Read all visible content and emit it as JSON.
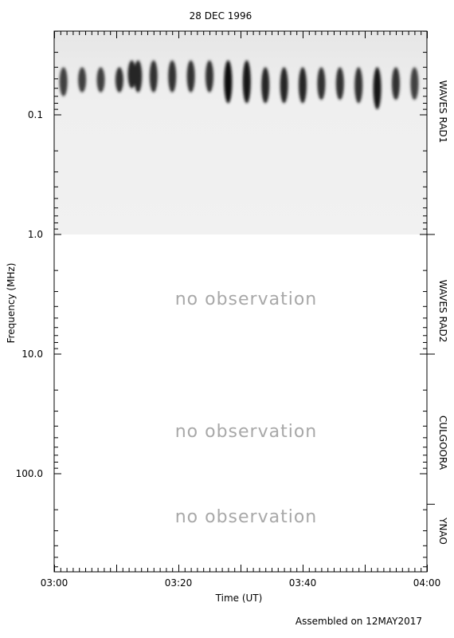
{
  "chart_data": {
    "type": "heatmap",
    "title": "28 DEC 1996",
    "xlabel": "Time (UT)",
    "ylabel": "Frequency (MHz)",
    "x_ticks": [
      "03:00",
      "03:20",
      "03:40",
      "04:00"
    ],
    "x_range_minutes": [
      0,
      60
    ],
    "y_scale": "log",
    "y_ticks": [
      "0.1",
      "1.0",
      "10.0",
      "100.0"
    ],
    "y_range_mhz": [
      0.02,
      1000
    ],
    "bands": [
      {
        "name": "WAVES RAD1",
        "range_mhz": [
          0.02,
          1.0
        ],
        "status": "observed"
      },
      {
        "name": "WAVES RAD2",
        "range_mhz": [
          1.0,
          10.0
        ],
        "status": "no observation"
      },
      {
        "name": "CULGOORA",
        "range_mhz": [
          10.0,
          180.0
        ],
        "status": "no observation"
      },
      {
        "name": "YNAO",
        "range_mhz": [
          180.0,
          1000
        ],
        "status": "no observation"
      }
    ],
    "no_observation_text": "no observation",
    "bursts": [
      {
        "t": 1.5,
        "f_top": 0.04,
        "f_bot": 0.07,
        "intensity": 0.75
      },
      {
        "t": 4.5,
        "f_top": 0.04,
        "f_bot": 0.065,
        "intensity": 0.75
      },
      {
        "t": 7.5,
        "f_top": 0.04,
        "f_bot": 0.065,
        "intensity": 0.75
      },
      {
        "t": 10.5,
        "f_top": 0.04,
        "f_bot": 0.065,
        "intensity": 0.8
      },
      {
        "t": 12.5,
        "f_top": 0.035,
        "f_bot": 0.06,
        "intensity": 0.85
      },
      {
        "t": 13.5,
        "f_top": 0.035,
        "f_bot": 0.065,
        "intensity": 0.85
      },
      {
        "t": 16.0,
        "f_top": 0.035,
        "f_bot": 0.065,
        "intensity": 0.8
      },
      {
        "t": 19.0,
        "f_top": 0.035,
        "f_bot": 0.065,
        "intensity": 0.8
      },
      {
        "t": 22.0,
        "f_top": 0.035,
        "f_bot": 0.065,
        "intensity": 0.8
      },
      {
        "t": 25.0,
        "f_top": 0.035,
        "f_bot": 0.065,
        "intensity": 0.8
      },
      {
        "t": 28.0,
        "f_top": 0.035,
        "f_bot": 0.08,
        "intensity": 0.95
      },
      {
        "t": 31.0,
        "f_top": 0.035,
        "f_bot": 0.08,
        "intensity": 0.9
      },
      {
        "t": 34.0,
        "f_top": 0.04,
        "f_bot": 0.08,
        "intensity": 0.85
      },
      {
        "t": 37.0,
        "f_top": 0.04,
        "f_bot": 0.08,
        "intensity": 0.85
      },
      {
        "t": 40.0,
        "f_top": 0.04,
        "f_bot": 0.08,
        "intensity": 0.85
      },
      {
        "t": 43.0,
        "f_top": 0.04,
        "f_bot": 0.075,
        "intensity": 0.8
      },
      {
        "t": 46.0,
        "f_top": 0.04,
        "f_bot": 0.075,
        "intensity": 0.8
      },
      {
        "t": 49.0,
        "f_top": 0.04,
        "f_bot": 0.08,
        "intensity": 0.8
      },
      {
        "t": 52.0,
        "f_top": 0.04,
        "f_bot": 0.09,
        "intensity": 0.9
      },
      {
        "t": 55.0,
        "f_top": 0.04,
        "f_bot": 0.075,
        "intensity": 0.8
      },
      {
        "t": 58.0,
        "f_top": 0.04,
        "f_bot": 0.075,
        "intensity": 0.75
      }
    ],
    "colors": {
      "burst": "#1a1a1a",
      "background": "#ececec",
      "frame": "#000000",
      "no_observation": "#a8a8a8"
    }
  },
  "footer": {
    "assembled": "Assembled on 12MAY2017"
  }
}
